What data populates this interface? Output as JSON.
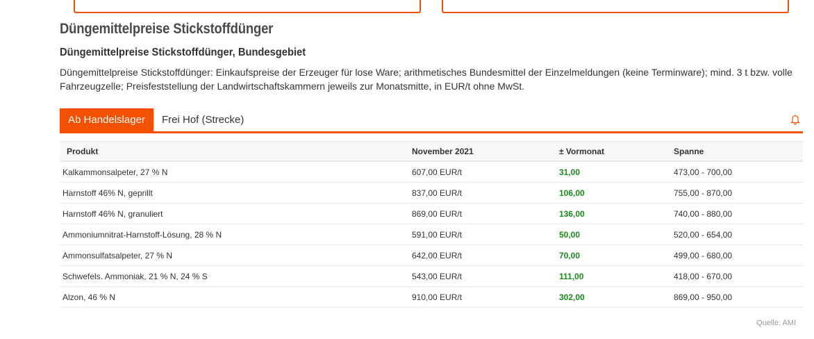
{
  "title": "Düngemittelpreise Stickstoffdünger",
  "subtitle": "Düngemittelpreise Stickstoffdünger, Bundesgebiet",
  "description": "Düngemittelpreise Stickstoffdünger: Einkaufspreise der Erzeuger für lose Ware; arithmetisches Bundesmittel der Einzelmeldungen (keine Terminware); mind. 3 t bzw. volle Fahrzeugzelle; Preisfeststellung der Landwirtschaftskammern jeweils zur Monatsmitte, in EUR/t ohne MwSt.",
  "tabs": [
    {
      "label": "Ab Handelslager",
      "active": true
    },
    {
      "label": "Frei Hof (Strecke)",
      "active": false
    }
  ],
  "accent": "#f35000",
  "table": {
    "headers": [
      "Produkt",
      "November 2021",
      "± Vormonat",
      "Spanne"
    ],
    "rows": [
      [
        "Kalkammonsalpeter, 27 % N",
        "607,00 EUR/t",
        "31,00",
        "473,00 - 700,00"
      ],
      [
        "Harnstoff 46% N, geprillt",
        "837,00 EUR/t",
        "106,00",
        "755,00 - 870,00"
      ],
      [
        "Harnstoff 46% N, granuliert",
        "869,00 EUR/t",
        "136,00",
        "740,00 - 880,00"
      ],
      [
        "Ammoniumnitrat-Harnstoff-Lösung, 28 % N",
        "591,00 EUR/t",
        "50,00",
        "520,00 - 654,00"
      ],
      [
        "Ammonsulfatsalpeter, 27 % N",
        "642,00 EUR/t",
        "70,00",
        "499,00 - 680,00"
      ],
      [
        "Schwefels. Ammoniak, 21 % N, 24 % S",
        "543,00 EUR/t",
        "111,00",
        "418,00 - 670,00"
      ],
      [
        "Alzon, 46 % N",
        "910,00 EUR/t",
        "302,00",
        "869,00 - 950,00"
      ]
    ]
  },
  "source": "Quelle: AMI"
}
